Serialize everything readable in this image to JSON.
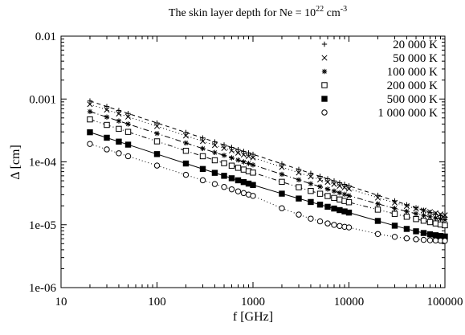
{
  "chart_data": {
    "type": "scatter",
    "title_prefix": "The skin layer depth for  Ne = 10",
    "title_sup": "22",
    "title_unit": " cm",
    "title_unit_sup": "-3",
    "xlabel": "f [GHz]",
    "ylabel": "Δ [cm]",
    "x_scale": "log",
    "y_scale": "log",
    "xlim": [
      10,
      100000
    ],
    "ylim": [
      1e-06,
      0.01
    ],
    "x_ticks": [
      "10",
      "100",
      "1000",
      "10000",
      "100000"
    ],
    "y_ticks": [
      "1e-06",
      "1e-05",
      "1e-04",
      "0.001",
      "0.01"
    ],
    "grid": false,
    "legend_position": "top-right",
    "x": [
      20,
      30,
      40,
      50,
      100,
      200,
      300,
      400,
      500,
      600,
      700,
      800,
      900,
      1000,
      2000,
      3000,
      4000,
      5000,
      6000,
      7000,
      8000,
      9000,
      10000,
      20000,
      30000,
      40000,
      50000,
      60000,
      70000,
      80000,
      90000,
      100000
    ],
    "series": [
      {
        "name": "20 000 K",
        "marker": "plus",
        "line": "dashed",
        "values": [
          0.000931,
          0.00076,
          0.000658,
          0.000589,
          0.000416,
          0.000294,
          0.00024,
          0.000208,
          0.000186,
          0.00017,
          0.000157,
          0.000147,
          0.000139,
          0.000132,
          9.31e-05,
          7.6e-05,
          6.58e-05,
          5.89e-05,
          5.38e-05,
          4.98e-05,
          4.65e-05,
          4.39e-05,
          4.16e-05,
          2.94e-05,
          2.4e-05,
          2.08e-05,
          1.86e-05,
          1.7e-05,
          1.57e-05,
          1.47e-05,
          1.39e-05,
          1.32e-05
        ]
      },
      {
        "name": "50 000 K",
        "marker": "cross",
        "line": "dotted",
        "values": [
          0.000825,
          0.000673,
          0.000583,
          0.000522,
          0.000369,
          0.000261,
          0.000213,
          0.000184,
          0.000165,
          0.000151,
          0.000139,
          0.00013,
          0.000123,
          0.000117,
          8.25e-05,
          6.74e-05,
          5.84e-05,
          5.23e-05,
          4.78e-05,
          4.43e-05,
          4.15e-05,
          3.92e-05,
          3.73e-05,
          2.69e-05,
          2.24e-05,
          1.98e-05,
          1.81e-05,
          1.69e-05,
          1.6e-05,
          1.53e-05,
          1.47e-05,
          1.42e-05
        ]
      },
      {
        "name": "100 000 K",
        "marker": "asterisk",
        "line": "dashdot",
        "values": [
          0.000632,
          0.000516,
          0.000447,
          0.0004,
          0.000283,
          0.0002,
          0.000163,
          0.000141,
          0.000127,
          0.000116,
          0.000107,
          0.0001,
          9.44e-05,
          8.96e-05,
          6.34e-05,
          5.18e-05,
          4.49e-05,
          4.03e-05,
          3.69e-05,
          3.43e-05,
          3.22e-05,
          3.05e-05,
          2.9e-05,
          2.15e-05,
          1.82e-05,
          1.63e-05,
          1.5e-05,
          1.41e-05,
          1.34e-05,
          1.28e-05,
          1.24e-05,
          1.2e-05
        ]
      },
      {
        "name": "200 000 K",
        "marker": "square-open",
        "line": "dashdotdot",
        "values": [
          0.000474,
          0.000387,
          0.000335,
          0.0003,
          0.000212,
          0.00015,
          0.000123,
          0.000106,
          9.52e-05,
          8.7e-05,
          8.05e-05,
          7.54e-05,
          7.11e-05,
          6.75e-05,
          4.81e-05,
          3.95e-05,
          3.45e-05,
          3.11e-05,
          2.86e-05,
          2.67e-05,
          2.52e-05,
          2.39e-05,
          2.28e-05,
          1.74e-05,
          1.49e-05,
          1.34e-05,
          1.23e-05,
          1.16e-05,
          1.1e-05,
          1.05e-05,
          1.01e-05,
          9.8e-06
        ]
      },
      {
        "name": "500 000 K",
        "marker": "square-filled",
        "line": "solid",
        "values": [
          0.000296,
          0.000242,
          0.00021,
          0.000188,
          0.000133,
          9.42e-05,
          7.71e-05,
          6.69e-05,
          6e-05,
          5.49e-05,
          5.09e-05,
          4.77e-05,
          4.51e-05,
          4.29e-05,
          3.12e-05,
          2.61e-05,
          2.3e-05,
          2.09e-05,
          1.93e-05,
          1.81e-05,
          1.71e-05,
          1.63e-05,
          1.56e-05,
          1.15e-05,
          9.66e-06,
          8.58e-06,
          7.87e-06,
          7.39e-06,
          7.05e-06,
          6.81e-06,
          6.64e-06,
          6.5e-06
        ]
      },
      {
        "name": "1 000 000 K",
        "marker": "circle-open",
        "line": "dotted",
        "values": [
          0.000193,
          0.000158,
          0.000137,
          0.000123,
          8.74e-05,
          6.22e-05,
          5.1e-05,
          4.44e-05,
          3.99e-05,
          3.66e-05,
          3.4e-05,
          3.19e-05,
          3.02e-05,
          2.88e-05,
          1.83e-05,
          1.45e-05,
          1.25e-05,
          1.13e-05,
          1.05e-05,
          9.95e-06,
          9.56e-06,
          9.28e-06,
          9.07e-06,
          7.12e-06,
          6.42e-06,
          6.07e-06,
          5.87e-06,
          5.75e-06,
          5.67e-06,
          5.62e-06,
          5.58e-06,
          5.55e-06
        ]
      }
    ]
  }
}
